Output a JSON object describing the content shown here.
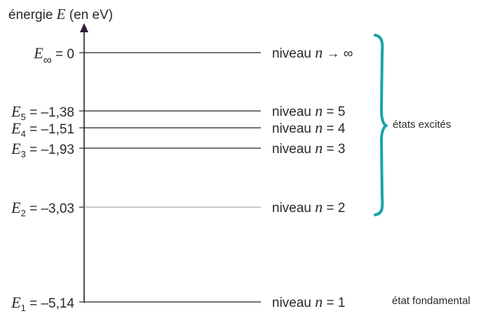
{
  "axis": {
    "label_prefix": "énergie ",
    "label_symbol": "E",
    "label_unit": " (en eV)"
  },
  "levels": [
    {
      "sym": "E",
      "sub": "∞",
      "value": "0",
      "energy_eV": 0,
      "level_prefix": "niveau ",
      "n": "n",
      "level_suffix": " → ∞",
      "line_color": "#222222"
    },
    {
      "sym": "E",
      "sub": "5",
      "value": "–1,38",
      "energy_eV": -1.38,
      "level_prefix": "niveau ",
      "n": "n",
      "level_suffix": " = 5",
      "line_color": "#222222"
    },
    {
      "sym": "E",
      "sub": "4",
      "value": "–1,51",
      "energy_eV": -1.51,
      "level_prefix": "niveau ",
      "n": "n",
      "level_suffix": " = 4",
      "line_color": "#222222"
    },
    {
      "sym": "E",
      "sub": "3",
      "value": "–1,93",
      "energy_eV": -1.93,
      "level_prefix": "niveau ",
      "n": "n",
      "level_suffix": " = 3",
      "line_color": "#222222"
    },
    {
      "sym": "E",
      "sub": "2",
      "value": "–3,03",
      "energy_eV": -3.03,
      "level_prefix": "niveau ",
      "n": "n",
      "level_suffix": " = 2",
      "line_color": "#a8a8a8"
    },
    {
      "sym": "E",
      "sub": "1",
      "value": "–5,14",
      "energy_eV": -5.14,
      "level_prefix": "niveau ",
      "n": "n",
      "level_suffix": " = 1",
      "line_color": "#222222"
    }
  ],
  "brace_label": "états excités",
  "ground_label": "état fondamental",
  "colors": {
    "axis": "#2e1a3a",
    "brace": "#1aa3a8",
    "text": "#2a2a2a"
  }
}
